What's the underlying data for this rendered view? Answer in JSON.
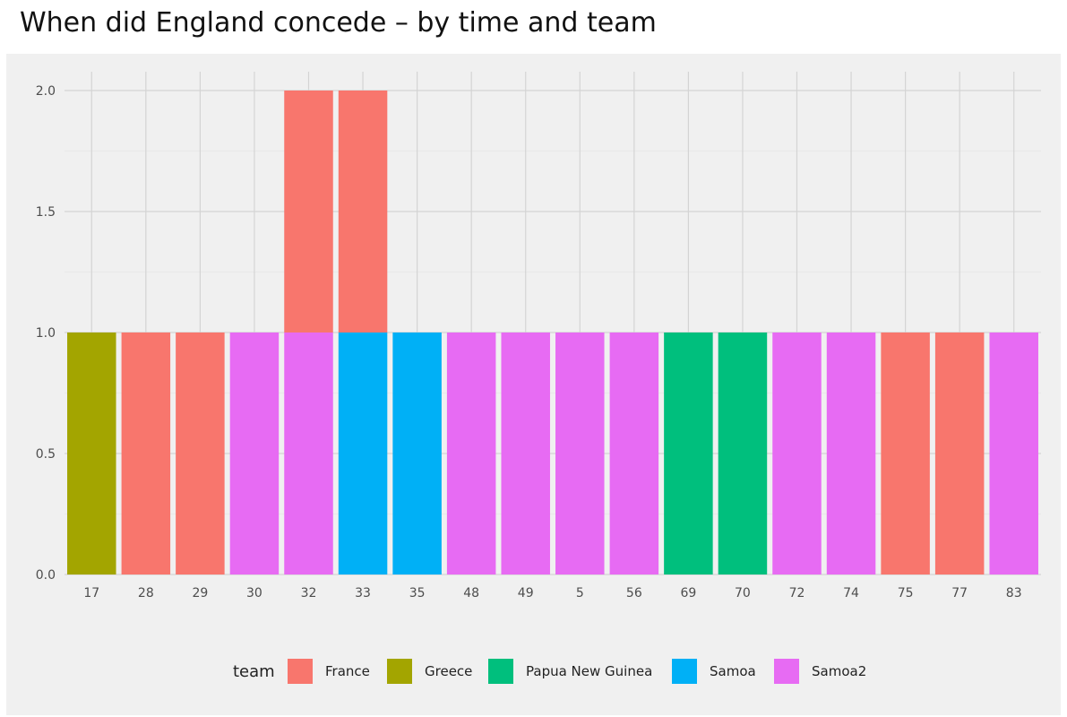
{
  "title": "When did England concede – by time and team",
  "chart_data": {
    "type": "bar",
    "stacked": true,
    "title": "When did England concede – by time and team",
    "xlabel": "",
    "ylabel": "",
    "ylim": [
      0,
      2
    ],
    "yticks": [
      "0.0",
      "0.5",
      "1.0",
      "1.5",
      "2.0"
    ],
    "categories": [
      "17",
      "28",
      "29",
      "30",
      "32",
      "33",
      "35",
      "48",
      "49",
      "5",
      "56",
      "69",
      "70",
      "72",
      "74",
      "75",
      "77",
      "83"
    ],
    "series": [
      {
        "name": "France",
        "color": "#F8766D",
        "values": [
          0,
          1,
          1,
          0,
          1,
          1,
          0,
          0,
          0,
          0,
          0,
          0,
          0,
          0,
          0,
          1,
          1,
          0
        ]
      },
      {
        "name": "Greece",
        "color": "#A3A500",
        "values": [
          1,
          0,
          0,
          0,
          0,
          0,
          0,
          0,
          0,
          0,
          0,
          0,
          0,
          0,
          0,
          0,
          0,
          0
        ]
      },
      {
        "name": "Papua New Guinea",
        "color": "#00BF7D",
        "values": [
          0,
          0,
          0,
          0,
          0,
          0,
          0,
          0,
          0,
          0,
          0,
          1,
          1,
          0,
          0,
          0,
          0,
          0
        ]
      },
      {
        "name": "Samoa",
        "color": "#00B0F6",
        "values": [
          0,
          0,
          0,
          0,
          0,
          1,
          1,
          0,
          0,
          0,
          0,
          0,
          0,
          0,
          0,
          0,
          0,
          0
        ]
      },
      {
        "name": "Samoa2",
        "color": "#E76BF3",
        "values": [
          0,
          0,
          0,
          1,
          1,
          0,
          0,
          1,
          1,
          1,
          1,
          0,
          0,
          1,
          1,
          0,
          0,
          1
        ]
      }
    ],
    "legend": {
      "title": "team",
      "position": "bottom"
    },
    "grid": true
  }
}
